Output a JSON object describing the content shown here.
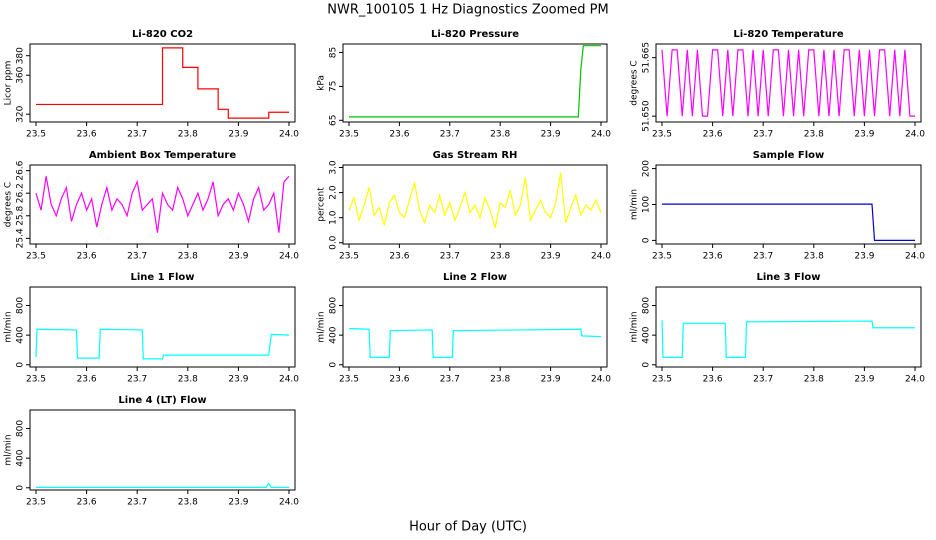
{
  "title": "NWR_100105  1 Hz Diagnostics Zoomed PM",
  "xlabel": "Hour of Day (UTC)",
  "chart_data": [
    {
      "type": "line",
      "title": "Li-820 CO2",
      "ylabel": "Licor ppm",
      "xlim": [
        23.5,
        24.0
      ],
      "xticks": [
        23.5,
        23.6,
        23.7,
        23.8,
        23.9,
        {
          "value": 24,
          "label": "24.0"
        }
      ],
      "ylim": [
        312,
        392
      ],
      "yticks": [
        320,
        360,
        380
      ],
      "x": [
        23.5,
        23.75,
        23.75,
        23.79,
        23.79,
        23.82,
        23.82,
        23.86,
        23.86,
        23.88,
        23.88,
        23.96,
        23.96,
        24
      ],
      "series": [
        {
          "color": "#ff0000",
          "values": [
            330,
            330,
            388,
            388,
            368,
            368,
            346,
            346,
            325,
            325,
            316,
            316,
            322,
            322
          ]
        }
      ]
    },
    {
      "type": "line",
      "title": "Li-820 Pressure",
      "ylabel": "kPa",
      "xlim": [
        23.5,
        24.0
      ],
      "xticks": [
        23.5,
        23.6,
        23.7,
        23.8,
        23.9,
        {
          "value": 24,
          "label": "24.0"
        }
      ],
      "ylim": [
        64.5,
        87.5
      ],
      "yticks": [
        65,
        75,
        85
      ],
      "x": [
        23.5,
        23.955,
        23.96,
        23.965,
        24
      ],
      "series": [
        {
          "color": "#00c000",
          "values": [
            66,
            66,
            80,
            87,
            87
          ]
        }
      ]
    },
    {
      "type": "line",
      "title": "Li-820 Temperature",
      "ylabel": "degrees C",
      "xlim": [
        23.5,
        24.0
      ],
      "xticks": [
        23.5,
        23.6,
        23.7,
        23.8,
        23.9,
        {
          "value": 24,
          "label": "24.0"
        }
      ],
      "ylim": [
        51.6485,
        51.6685
      ],
      "yticks": [
        {
          "value": 51.65,
          "label": "51.650"
        },
        {
          "value": 51.665,
          "label": "51.665"
        }
      ],
      "x": [
        23.5,
        23.51,
        23.52,
        23.53,
        23.54,
        23.55,
        23.56,
        23.57,
        23.58,
        23.59,
        23.6,
        23.61,
        23.62,
        23.63,
        23.64,
        23.65,
        23.66,
        23.67,
        23.68,
        23.69,
        23.7,
        23.71,
        23.72,
        23.73,
        23.74,
        23.75,
        23.76,
        23.77,
        23.78,
        23.79,
        23.8,
        23.81,
        23.82,
        23.83,
        23.84,
        23.85,
        23.86,
        23.87,
        23.88,
        23.89,
        23.9,
        23.91,
        23.92,
        23.93,
        23.94,
        23.95,
        23.96,
        23.97,
        23.98,
        23.99,
        24
      ],
      "series": [
        {
          "color": "#ff00ff",
          "values": [
            51.667,
            51.65,
            51.667,
            51.667,
            51.65,
            51.667,
            51.65,
            51.667,
            51.65,
            51.65,
            51.667,
            51.667,
            51.65,
            51.667,
            51.65,
            51.667,
            51.667,
            51.65,
            51.667,
            51.65,
            51.667,
            51.65,
            51.667,
            51.667,
            51.65,
            51.667,
            51.65,
            51.667,
            51.65,
            51.667,
            51.667,
            51.65,
            51.667,
            51.65,
            51.667,
            51.65,
            51.667,
            51.667,
            51.65,
            51.667,
            51.65,
            51.667,
            51.65,
            51.667,
            51.667,
            51.65,
            51.667,
            51.65,
            51.667,
            51.65,
            51.65
          ]
        }
      ]
    },
    {
      "type": "line",
      "title": "Ambient Box Temperature",
      "ylabel": "degrees C",
      "xlim": [
        23.5,
        24.0
      ],
      "xticks": [
        23.5,
        23.6,
        23.7,
        23.8,
        23.9,
        {
          "value": 24,
          "label": "24.0"
        }
      ],
      "ylim": [
        25.3,
        26.7
      ],
      "yticks": [
        25.4,
        25.8,
        26.2,
        26.6
      ],
      "x": [
        23.5,
        23.51,
        23.52,
        23.53,
        23.54,
        23.55,
        23.56,
        23.57,
        23.58,
        23.59,
        23.6,
        23.61,
        23.62,
        23.63,
        23.64,
        23.65,
        23.66,
        23.67,
        23.68,
        23.69,
        23.7,
        23.71,
        23.72,
        23.73,
        23.74,
        23.75,
        23.76,
        23.77,
        23.78,
        23.79,
        23.8,
        23.81,
        23.82,
        23.83,
        23.84,
        23.85,
        23.86,
        23.87,
        23.88,
        23.89,
        23.9,
        23.91,
        23.92,
        23.93,
        23.94,
        23.95,
        23.96,
        23.97,
        23.98,
        23.99,
        24
      ],
      "series": [
        {
          "color": "#ff00ff",
          "values": [
            26.2,
            25.9,
            26.5,
            26.0,
            25.8,
            26.1,
            26.3,
            25.7,
            26.0,
            26.2,
            25.9,
            26.1,
            25.6,
            26.0,
            26.3,
            25.9,
            26.1,
            26.0,
            25.8,
            26.2,
            26.4,
            25.9,
            26.0,
            26.1,
            25.5,
            26.2,
            26.0,
            25.9,
            26.3,
            26.1,
            25.8,
            26.0,
            26.2,
            25.9,
            26.1,
            26.4,
            25.8,
            26.0,
            26.1,
            25.9,
            26.2,
            26.0,
            25.7,
            26.1,
            26.3,
            25.9,
            26.0,
            26.2,
            25.5,
            26.4,
            26.5
          ]
        }
      ]
    },
    {
      "type": "line",
      "title": "Gas Stream RH",
      "ylabel": "percent",
      "xlim": [
        23.5,
        24.0
      ],
      "xticks": [
        23.5,
        23.6,
        23.7,
        23.8,
        23.9,
        {
          "value": 24,
          "label": "24.0"
        }
      ],
      "ylim": [
        -0.05,
        3.1
      ],
      "yticks": [
        {
          "value": 0,
          "label": "0.0"
        },
        {
          "value": 1,
          "label": "1.0"
        },
        {
          "value": 2,
          "label": "2.0"
        },
        {
          "value": 3,
          "label": "3.0"
        }
      ],
      "x": [
        23.5,
        23.51,
        23.52,
        23.53,
        23.54,
        23.55,
        23.56,
        23.57,
        23.58,
        23.59,
        23.6,
        23.61,
        23.62,
        23.63,
        23.64,
        23.65,
        23.66,
        23.67,
        23.68,
        23.69,
        23.7,
        23.71,
        23.72,
        23.73,
        23.74,
        23.75,
        23.76,
        23.77,
        23.78,
        23.79,
        23.8,
        23.81,
        23.82,
        23.83,
        23.84,
        23.85,
        23.86,
        23.87,
        23.88,
        23.89,
        23.9,
        23.91,
        23.92,
        23.93,
        23.94,
        23.95,
        23.96,
        23.97,
        23.98,
        23.99,
        24
      ],
      "series": [
        {
          "color": "#ffff00",
          "values": [
            1.3,
            1.8,
            0.9,
            1.5,
            2.2,
            1.1,
            1.4,
            0.7,
            1.6,
            1.9,
            1.2,
            1.0,
            1.7,
            2.4,
            1.3,
            0.8,
            1.5,
            1.2,
            1.9,
            1.1,
            1.6,
            0.9,
            1.4,
            2.0,
            1.2,
            1.5,
            1.0,
            1.8,
            1.3,
            0.6,
            1.6,
            1.4,
            2.1,
            1.1,
            1.5,
            2.6,
            0.9,
            1.3,
            1.7,
            1.2,
            1.0,
            1.6,
            2.8,
            0.8,
            1.4,
            1.9,
            1.1,
            1.5,
            1.3,
            1.7,
            1.2
          ]
        }
      ]
    },
    {
      "type": "line",
      "title": "Sample Flow",
      "ylabel": "ml/min",
      "xlim": [
        23.5,
        24.0
      ],
      "xticks": [
        23.5,
        23.6,
        23.7,
        23.8,
        23.9,
        {
          "value": 24,
          "label": "24.0"
        }
      ],
      "ylim": [
        -10,
        210
      ],
      "yticks": [
        0,
        100,
        200
      ],
      "x": [
        23.5,
        23.915,
        23.92,
        24
      ],
      "series": [
        {
          "color": "#0000cc",
          "values": [
            101,
            101,
            0,
            0
          ]
        }
      ]
    },
    {
      "type": "line",
      "title": "Line 1 Flow",
      "ylabel": "ml/min",
      "xlim": [
        23.5,
        24.0
      ],
      "xticks": [
        23.5,
        23.6,
        23.7,
        23.8,
        23.9,
        {
          "value": 24,
          "label": "24.0"
        }
      ],
      "ylim": [
        -30,
        1050
      ],
      "yticks": [
        0,
        400,
        800
      ],
      "x": [
        23.5,
        23.502,
        23.504,
        23.58,
        23.582,
        23.625,
        23.627,
        23.71,
        23.712,
        23.75,
        23.752,
        23.96,
        23.965,
        24
      ],
      "series": [
        {
          "color": "#00ffff",
          "values": [
            100,
            480,
            480,
            470,
            90,
            90,
            480,
            470,
            80,
            80,
            130,
            130,
            410,
            400
          ]
        }
      ]
    },
    {
      "type": "line",
      "title": "Line 2 Flow",
      "ylabel": "ml/min",
      "xlim": [
        23.5,
        24.0
      ],
      "xticks": [
        23.5,
        23.6,
        23.7,
        23.8,
        23.9,
        {
          "value": 24,
          "label": "24.0"
        }
      ],
      "ylim": [
        -30,
        1050
      ],
      "yticks": [
        0,
        400,
        800
      ],
      "x": [
        23.5,
        23.54,
        23.542,
        23.58,
        23.582,
        23.665,
        23.667,
        23.705,
        23.707,
        23.96,
        23.962,
        24
      ],
      "series": [
        {
          "color": "#00ffff",
          "values": [
            490,
            480,
            100,
            100,
            460,
            470,
            100,
            100,
            460,
            480,
            390,
            380
          ]
        }
      ]
    },
    {
      "type": "line",
      "title": "Line 3 Flow",
      "ylabel": "ml/min",
      "xlim": [
        23.5,
        24.0
      ],
      "xticks": [
        23.5,
        23.6,
        23.7,
        23.8,
        23.9,
        {
          "value": 24,
          "label": "24.0"
        }
      ],
      "ylim": [
        -30,
        1050
      ],
      "yticks": [
        0,
        400,
        800
      ],
      "x": [
        23.5,
        23.502,
        23.54,
        23.542,
        23.625,
        23.627,
        23.665,
        23.667,
        23.915,
        23.917,
        24
      ],
      "series": [
        {
          "color": "#00ffff",
          "values": [
            600,
            100,
            100,
            560,
            560,
            100,
            100,
            580,
            590,
            500,
            500
          ]
        }
      ]
    },
    {
      "type": "line",
      "title": "Line 4 (LT) Flow",
      "ylabel": "ml/min",
      "xlim": [
        23.5,
        24.0
      ],
      "xticks": [
        23.5,
        23.6,
        23.7,
        23.8,
        23.9,
        {
          "value": 24,
          "label": "24.0"
        }
      ],
      "ylim": [
        -30,
        1050
      ],
      "yticks": [
        0,
        400,
        800
      ],
      "x": [
        23.5,
        23.955,
        23.96,
        23.965,
        24
      ],
      "series": [
        {
          "color": "#00ffff",
          "values": [
            5,
            5,
            60,
            5,
            5
          ]
        }
      ]
    }
  ]
}
